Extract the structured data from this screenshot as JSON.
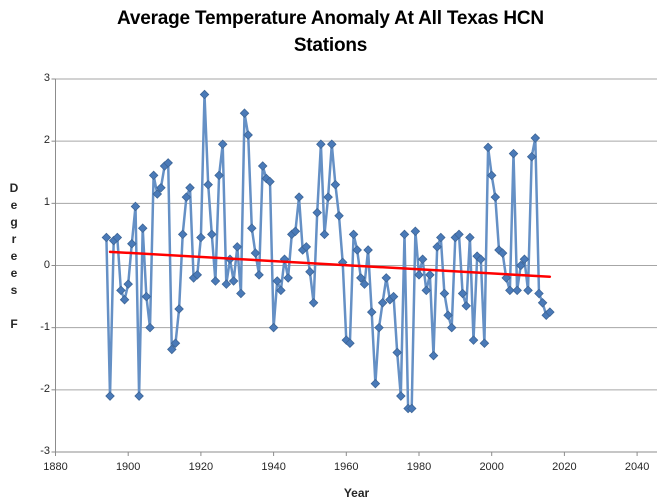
{
  "title": {
    "line1": "Average Temperature Anomaly At All Texas HCN",
    "line2": "Stations"
  },
  "chart_data": {
    "type": "line",
    "title": "Average Temperature Anomaly At All Texas HCN Stations",
    "xlabel": "Year",
    "ylabel": "Degrees F",
    "xlim": [
      1880,
      2040
    ],
    "ylim": [
      -3,
      3
    ],
    "x_ticks": [
      1880,
      1900,
      1920,
      1940,
      1960,
      1980,
      2000,
      2020,
      2040
    ],
    "y_ticks": [
      3,
      2,
      1,
      0,
      -1,
      -2,
      -3
    ],
    "grid": "horizontal-only",
    "legend": "none",
    "marker": "diamond",
    "series": [
      {
        "name": "anomaly-series",
        "color": "#4F81BD",
        "x": [
          1894,
          1895,
          1896,
          1897,
          1898,
          1899,
          1900,
          1901,
          1902,
          1903,
          1904,
          1905,
          1906,
          1907,
          1908,
          1909,
          1910,
          1911,
          1912,
          1913,
          1914,
          1915,
          1916,
          1917,
          1918,
          1919,
          1920,
          1921,
          1922,
          1923,
          1924,
          1925,
          1926,
          1927,
          1928,
          1929,
          1930,
          1931,
          1932,
          1933,
          1934,
          1935,
          1936,
          1937,
          1938,
          1939,
          1940,
          1941,
          1942,
          1943,
          1944,
          1945,
          1946,
          1947,
          1948,
          1949,
          1950,
          1951,
          1952,
          1953,
          1954,
          1955,
          1956,
          1957,
          1958,
          1959,
          1960,
          1961,
          1962,
          1963,
          1964,
          1965,
          1966,
          1967,
          1968,
          1969,
          1970,
          1971,
          1972,
          1973,
          1974,
          1975,
          1976,
          1977,
          1978,
          1979,
          1980,
          1981,
          1982,
          1983,
          1984,
          1985,
          1986,
          1987,
          1988,
          1989,
          1990,
          1991,
          1992,
          1993,
          1994,
          1995,
          1996,
          1997,
          1998,
          1999,
          2000,
          2001,
          2002,
          2003,
          2004,
          2005,
          2006,
          2007,
          2008,
          2009,
          2010,
          2011,
          2012,
          2013,
          2014,
          2015,
          2016
        ],
        "y": [
          0.45,
          -2.1,
          0.4,
          0.45,
          -0.4,
          -0.55,
          -0.3,
          0.35,
          0.95,
          -2.1,
          0.6,
          -0.5,
          -1.0,
          1.45,
          1.15,
          1.25,
          1.6,
          1.65,
          -1.35,
          -1.25,
          -0.7,
          0.5,
          1.1,
          1.25,
          -0.2,
          -0.15,
          0.45,
          2.75,
          1.3,
          0.5,
          -0.25,
          1.45,
          1.95,
          -0.3,
          0.1,
          -0.25,
          0.3,
          -0.45,
          2.45,
          2.1,
          0.6,
          0.2,
          -0.15,
          1.6,
          1.4,
          1.35,
          -1.0,
          -0.25,
          -0.4,
          0.1,
          -0.2,
          0.5,
          0.55,
          1.1,
          0.25,
          0.3,
          -0.1,
          -0.6,
          0.85,
          1.95,
          0.5,
          1.1,
          1.95,
          1.3,
          0.8,
          0.05,
          -1.2,
          -1.25,
          0.5,
          0.25,
          -0.2,
          -0.3,
          0.25,
          -0.75,
          -1.9,
          -1.0,
          -0.6,
          -0.2,
          -0.55,
          -0.5,
          -1.4,
          -2.1,
          0.5,
          -2.3,
          -2.3,
          0.55,
          -0.15,
          0.1,
          -0.4,
          -0.15,
          -1.45,
          0.3,
          0.45,
          -0.45,
          -0.8,
          -1.0,
          0.45,
          0.5,
          -0.45,
          -0.65,
          0.45,
          -1.2,
          0.15,
          0.1,
          -1.25,
          1.9,
          1.45,
          1.1,
          0.25,
          0.2,
          -0.2,
          -0.4,
          1.8,
          -0.4,
          0.0,
          0.1,
          -0.4,
          1.75,
          2.05,
          -0.45,
          -0.6,
          -0.8,
          -0.75
        ]
      },
      {
        "name": "trend-line",
        "color": "#FF0000",
        "x": [
          1895,
          2016
        ],
        "y": [
          0.22,
          -0.18
        ]
      }
    ]
  },
  "colors": {
    "series_line": "#6590c5",
    "marker_fill": "#4a7ab8",
    "marker_stroke": "#3d6596",
    "trend": "#FF0000",
    "gridline": "#a6a6a6",
    "axis": "#8c8c8c",
    "tick_text": "#262626",
    "background": "#ffffff"
  }
}
